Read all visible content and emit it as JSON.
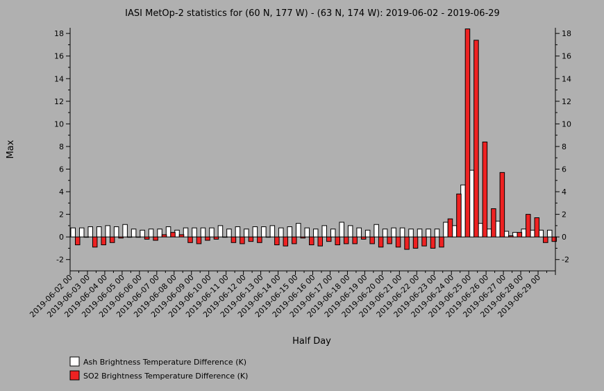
{
  "chart_data": {
    "type": "bar",
    "title": "IASI MetOp-2 statistics for (60 N, 177 W) - (63 N, 174 W): 2019-06-02 - 2019-06-29",
    "xlabel": "Half Day",
    "ylabel": "Max",
    "ylim": [
      -3,
      18.5
    ],
    "yticks": [
      -2,
      0,
      2,
      4,
      6,
      8,
      10,
      12,
      14,
      16,
      18
    ],
    "x_tick_labels": [
      "2019-06-02 00",
      "2019-06-03 00",
      "2019-06-04 00",
      "2019-06-05 00",
      "2019-06-06 00",
      "2019-06-07 00",
      "2019-06-08 00",
      "2019-06-09 00",
      "2019-06-10 00",
      "2019-06-11 00",
      "2019-06-12 00",
      "2019-06-13 00",
      "2019-06-14 00",
      "2019-06-15 00",
      "2019-06-16 00",
      "2019-06-17 00",
      "2019-06-18 00",
      "2019-06-19 00",
      "2019-06-20 00",
      "2019-06-21 00",
      "2019-06-22 00",
      "2019-06-23 00",
      "2019-06-24 00",
      "2019-06-25 00",
      "2019-06-26 00",
      "2019-06-27 00",
      "2019-06-28 00",
      "2019-06-29 00"
    ],
    "legend_position": "bottom-left",
    "series": [
      {
        "name": "Ash Brightness Temperature Difference (K)",
        "color": "#ffffff",
        "values": [
          0.8,
          0.8,
          0.9,
          0.9,
          1.0,
          0.9,
          1.1,
          0.7,
          0.6,
          0.7,
          0.7,
          0.9,
          0.6,
          0.8,
          0.8,
          0.8,
          0.8,
          1.0,
          0.7,
          0.9,
          0.7,
          0.9,
          0.9,
          1.0,
          0.8,
          0.9,
          1.2,
          0.8,
          0.7,
          1.0,
          0.7,
          1.3,
          1.0,
          0.8,
          0.6,
          1.1,
          0.7,
          0.8,
          0.8,
          0.7,
          0.7,
          0.7,
          0.7,
          1.3,
          1.0,
          4.6,
          5.9,
          1.2,
          0.7,
          1.4,
          0.5,
          0.4,
          0.7,
          0.6,
          0.6,
          0.6
        ]
      },
      {
        "name": "SO2 Brightness Temperature Difference (K)",
        "color": "#ee2222",
        "values": [
          -0.7,
          0.0,
          -0.9,
          -0.7,
          -0.5,
          -0.1,
          0.0,
          0.0,
          -0.2,
          -0.3,
          0.2,
          0.4,
          0.2,
          -0.5,
          -0.6,
          -0.3,
          -0.2,
          0.0,
          -0.5,
          -0.6,
          -0.4,
          -0.5,
          0.0,
          -0.7,
          -0.8,
          -0.6,
          -0.1,
          -0.7,
          -0.8,
          -0.4,
          -0.7,
          -0.6,
          -0.6,
          -0.2,
          -0.6,
          -0.9,
          -0.6,
          -0.9,
          -1.1,
          -1.0,
          -0.8,
          -1.0,
          -0.9,
          1.6,
          3.8,
          18.4,
          17.4,
          8.4,
          2.5,
          5.7,
          0.1,
          0.4,
          2.0,
          1.7,
          -0.5,
          -0.4
        ]
      }
    ]
  }
}
